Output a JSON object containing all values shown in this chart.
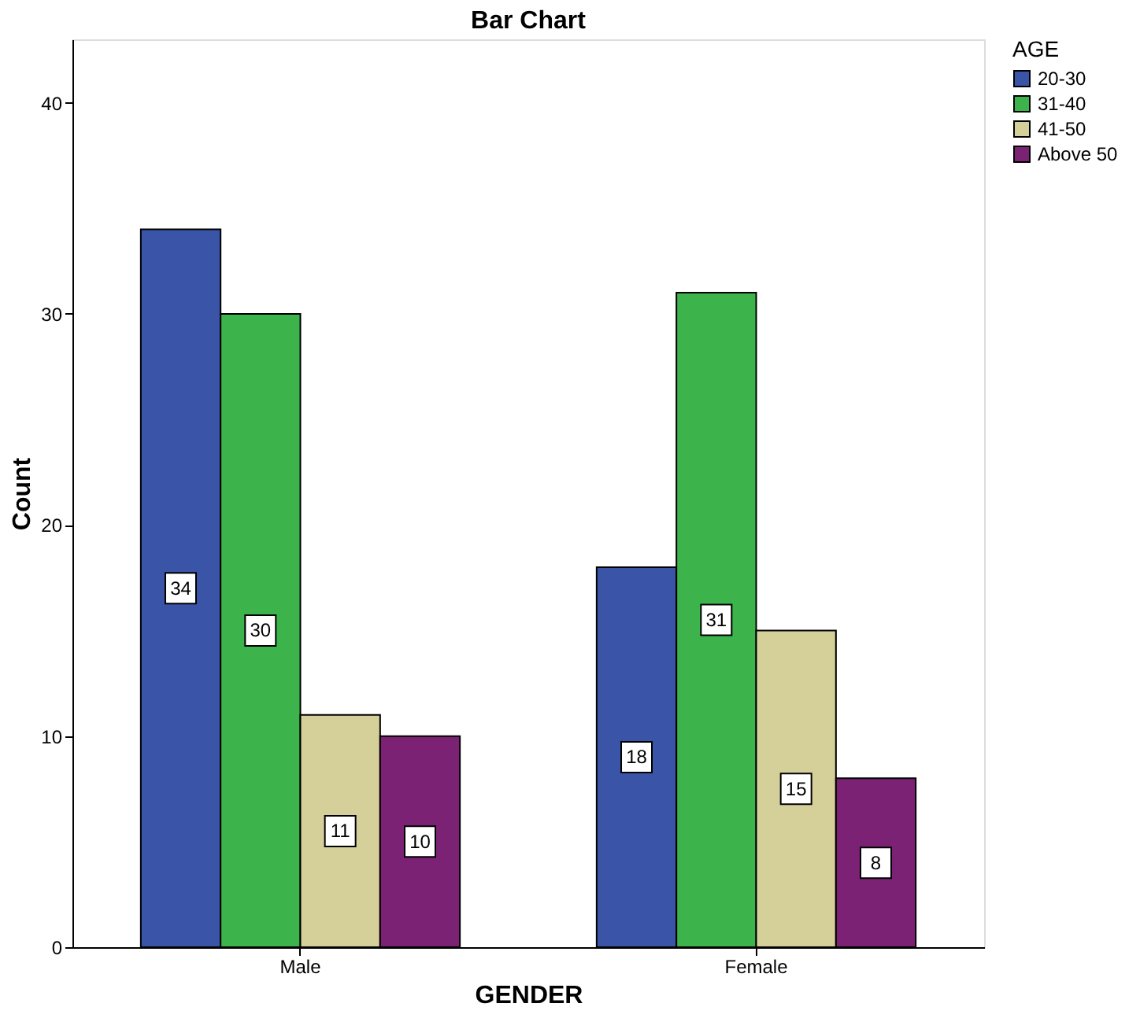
{
  "chart_data": {
    "type": "bar",
    "title": "Bar Chart",
    "xlabel": "GENDER",
    "ylabel": "Count",
    "legend_title": "AGE",
    "categories": [
      "Male",
      "Female"
    ],
    "series": [
      {
        "name": "20-30",
        "color": "#3a54a8",
        "values": [
          34,
          18
        ]
      },
      {
        "name": "31-40",
        "color": "#3cb44b",
        "values": [
          30,
          31
        ]
      },
      {
        "name": "41-50",
        "color": "#d5d09a",
        "values": [
          11,
          15
        ]
      },
      {
        "name": "Above 50",
        "color": "#7b2275",
        "values": [
          10,
          8
        ]
      }
    ],
    "ylim": [
      0,
      43
    ],
    "yticks": [
      0,
      10,
      20,
      30,
      40
    ],
    "grid": false,
    "legend": "top right",
    "data_labels": true
  }
}
